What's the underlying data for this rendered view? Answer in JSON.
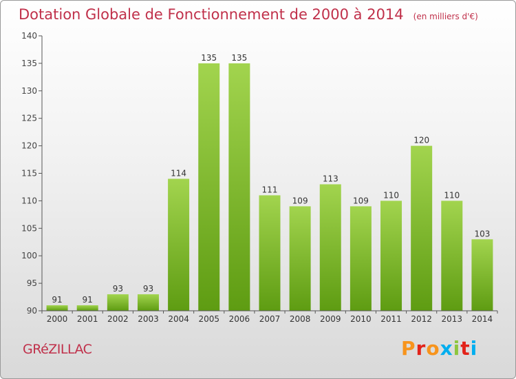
{
  "header": {
    "title": "Dotation Globale de Fonctionnement de 2000 à 2014",
    "unit": "(en milliers d'€)"
  },
  "footer": {
    "commune": "GRéZILLAC",
    "logo_text": "Proxiti",
    "logo_colors": [
      "#f7941d",
      "#e2231a",
      "#f7941d",
      "#00aeef",
      "#8dc63f",
      "#e2231a",
      "#00aeef"
    ]
  },
  "colors": {
    "bar_light": "#a2d44e",
    "bar_dark": "#5e9c12",
    "text": "#c0304a",
    "axis": "#555555"
  },
  "chart_data": {
    "type": "bar",
    "categories": [
      "2000",
      "2001",
      "2002",
      "2003",
      "2004",
      "2005",
      "2006",
      "2007",
      "2008",
      "2009",
      "2010",
      "2011",
      "2012",
      "2013",
      "2014"
    ],
    "values": [
      91,
      91,
      93,
      93,
      114,
      135,
      135,
      111,
      109,
      113,
      109,
      110,
      120,
      110,
      103
    ],
    "ylim": [
      90,
      140
    ],
    "yticks": [
      90,
      95,
      100,
      105,
      110,
      115,
      120,
      125,
      130,
      135,
      140
    ],
    "grid": false
  }
}
